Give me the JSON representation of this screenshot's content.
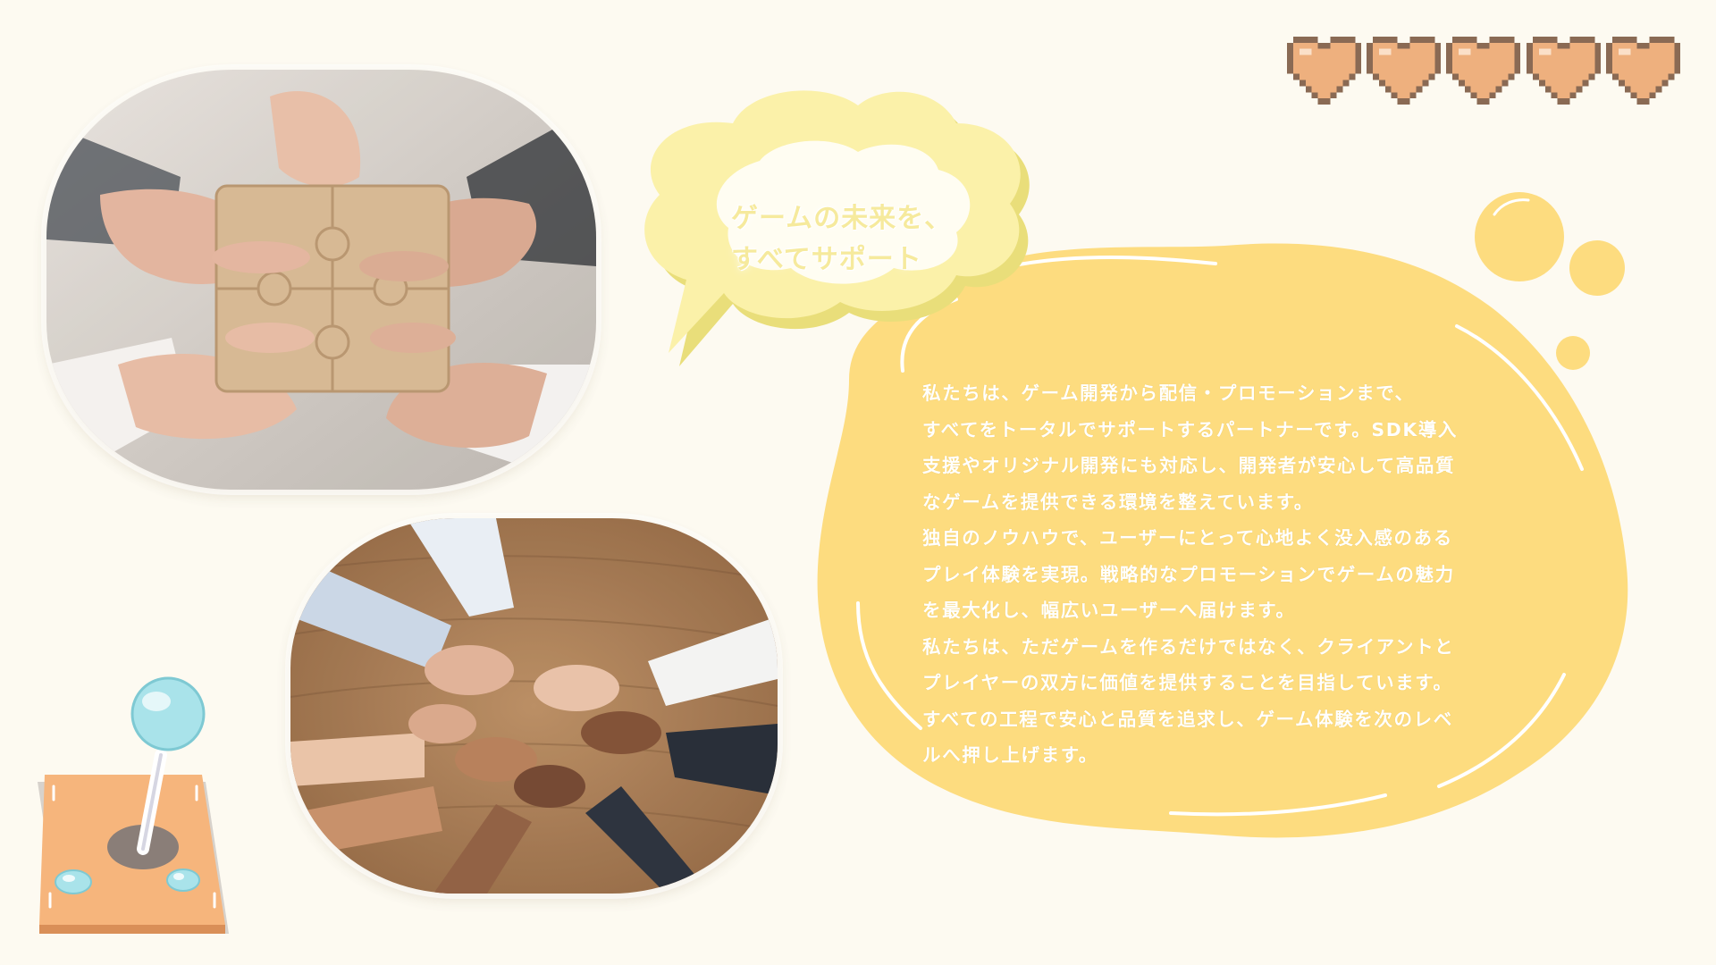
{
  "bubble": {
    "line1": "ゲームの未来を、",
    "line2": "すべてサポート"
  },
  "description": {
    "lines": [
      "私たちは、ゲーム開発から配信・プロモーションまで、",
      "すべてをトータルでサポートするパートナーです。SDK導入",
      "支援やオリジナル開発にも対応し、開発者が安心して高品質",
      "なゲームを提供できる環境を整えています。",
      "独自のノウハウで、ユーザーにとって心地よく没入感のある",
      "プレイ体験を実現。戦略的なプロモーションでゲームの魅力",
      "を最大化し、幅広いユーザーへ届けます。",
      "私たちは、ただゲームを作るだけではなく、クライアントと",
      "プレイヤーの双方に価値を提供することを目指しています。",
      "すべての工程で安心と品質を追求し、ゲーム体験を次のレベ",
      "ルへ押し上げます。"
    ]
  },
  "hearts": {
    "count": 5,
    "color": "#eeb07e"
  },
  "colors": {
    "background": "#fdfaf1",
    "blob": "#fddc7f",
    "bubble": "#fbf1a9",
    "joystick_base": "#f6b57c",
    "joystick_ball": "#a9e3ea"
  },
  "icons": {
    "hearts": "pixel-heart-icon",
    "joystick": "joystick-icon",
    "photo1": "puzzle-hands-photo",
    "photo2": "joined-hands-photo"
  }
}
